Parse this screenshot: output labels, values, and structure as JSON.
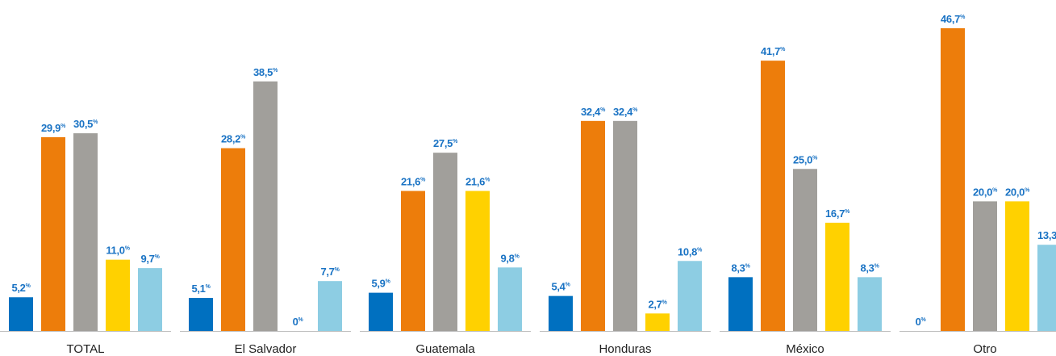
{
  "chart_data": {
    "type": "bar",
    "categories": [
      "TOTAL",
      "El Salvador",
      "Guatemala",
      "Honduras",
      "México",
      "Otro"
    ],
    "series": [
      {
        "values": [
          5.2,
          5.1,
          5.9,
          5.4,
          8.3,
          0
        ],
        "color": "#0070c0"
      },
      {
        "values": [
          29.9,
          28.2,
          21.6,
          32.4,
          41.7,
          46.7
        ],
        "color": "#ed7d0b"
      },
      {
        "values": [
          30.5,
          38.5,
          27.5,
          32.4,
          25.0,
          20.0
        ],
        "color": "#a19f9b"
      },
      {
        "values": [
          11.0,
          0,
          21.6,
          2.7,
          16.7,
          20.0
        ],
        "color": "#ffd100"
      },
      {
        "values": [
          9.7,
          7.7,
          9.8,
          10.8,
          8.3,
          13.3
        ],
        "color": "#8dcde3"
      }
    ],
    "labels": [
      [
        "5,2",
        "29,9",
        "30,5",
        "11,0",
        "9,7"
      ],
      [
        "5,1",
        "28,2",
        "38,5",
        "0",
        "7,7"
      ],
      [
        "5,9",
        "21,6",
        "27,5",
        "21,6",
        "9,8"
      ],
      [
        "5,4",
        "32,4",
        "32,4",
        "2,7",
        "10,8"
      ],
      [
        "8,3",
        "41,7",
        "25,0",
        "16,7",
        "8,3"
      ],
      [
        "0",
        "46,7",
        "20,0",
        "20,0",
        "13,3"
      ]
    ],
    "label_unit": "%",
    "label_color": "#1a73c4",
    "axis_color": "#bfbfbf",
    "ylim": [
      0,
      50
    ],
    "grid": false,
    "legend": "none"
  }
}
